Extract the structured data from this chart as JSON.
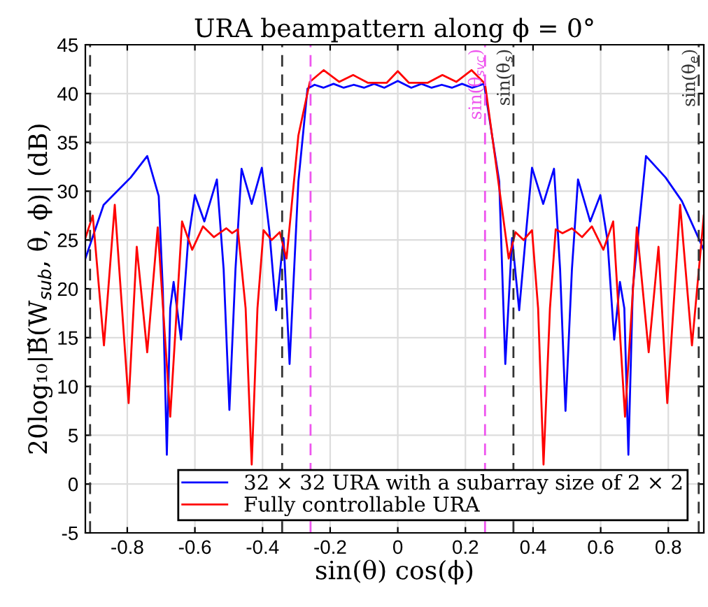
{
  "chart_data": {
    "type": "line",
    "title": "URA beampattern along ϕ = 0°",
    "xlabel": "sin(θ) cos(ϕ)",
    "ylabel": "20log₁₀|B̃(W$_{sub}$, θ, ϕ)| (dB)",
    "series": [
      {
        "name": "32 × 32 URA with a subarray size of 2 × 2",
        "color": "#0000ff",
        "x": [
          -0.924,
          -0.87,
          -0.79,
          -0.741,
          -0.707,
          -0.695,
          -0.683,
          -0.673,
          -0.663,
          -0.641,
          -0.62,
          -0.6,
          -0.572,
          -0.535,
          -0.515,
          -0.498,
          -0.48,
          -0.462,
          -0.432,
          -0.402,
          -0.38,
          -0.36,
          -0.338,
          -0.32,
          -0.294,
          -0.267,
          -0.246,
          -0.22,
          -0.19,
          -0.16,
          -0.13,
          -0.1,
          -0.07,
          -0.04,
          0,
          0.04,
          0.07,
          0.1,
          0.13,
          0.16,
          0.19,
          0.22,
          0.255,
          0.3,
          0.318,
          0.338,
          0.359,
          0.38,
          0.397,
          0.43,
          0.462,
          0.48,
          0.496,
          0.515,
          0.533,
          0.569,
          0.599,
          0.62,
          0.64,
          0.657,
          0.67,
          0.682,
          0.695,
          0.734,
          0.792,
          0.84,
          0.905
        ],
        "values": [
          23.1,
          28.6,
          31.4,
          33.6,
          29.5,
          20,
          3,
          18,
          20.7,
          14.8,
          25,
          29.6,
          26.9,
          31.2,
          22,
          7.6,
          22,
          32.3,
          28.7,
          32.4,
          26,
          17.8,
          25.2,
          12.3,
          31.0,
          40.5,
          40.9,
          40.6,
          41.0,
          40.6,
          40.9,
          40.6,
          41.0,
          40.6,
          41.3,
          40.6,
          41.0,
          40.6,
          40.9,
          40.6,
          41.0,
          40.6,
          41.0,
          31.0,
          12.3,
          25.2,
          17.8,
          26,
          32.4,
          28.7,
          32.3,
          22,
          7.5,
          22,
          31.2,
          26.9,
          29.6,
          25,
          14.8,
          20.7,
          18,
          3,
          20,
          33.6,
          31.4,
          29.0,
          24.0
        ]
      },
      {
        "name": "Fully controllable URA",
        "color": "#ff0000",
        "x": [
          -0.924,
          -0.902,
          -0.869,
          -0.837,
          -0.796,
          -0.772,
          -0.741,
          -0.71,
          -0.673,
          -0.638,
          -0.608,
          -0.576,
          -0.544,
          -0.507,
          -0.49,
          -0.473,
          -0.45,
          -0.432,
          -0.415,
          -0.397,
          -0.373,
          -0.349,
          -0.329,
          -0.294,
          -0.26,
          -0.219,
          -0.173,
          -0.132,
          -0.088,
          -0.033,
          0,
          0.033,
          0.088,
          0.132,
          0.173,
          0.218,
          0.258,
          0.288,
          0.328,
          0.348,
          0.372,
          0.397,
          0.415,
          0.431,
          0.45,
          0.467,
          0.487,
          0.515,
          0.545,
          0.574,
          0.608,
          0.637,
          0.672,
          0.707,
          0.742,
          0.771,
          0.797,
          0.835,
          0.87,
          0.905
        ],
        "values": [
          25.2,
          27.5,
          14.2,
          28.6,
          8.3,
          24.3,
          13.5,
          26.3,
          6.9,
          26.9,
          24.0,
          26.4,
          25.3,
          26.2,
          25.7,
          26.1,
          18,
          2,
          18,
          26.0,
          25.0,
          25.8,
          23.1,
          35.7,
          41.2,
          42.4,
          41.2,
          41.9,
          41.1,
          41.1,
          42.3,
          41.1,
          41.1,
          41.9,
          41.2,
          42.4,
          41.0,
          33.4,
          23.1,
          25.8,
          25.0,
          26.0,
          18,
          2,
          18,
          26.1,
          25.7,
          26.2,
          25.3,
          26.4,
          24.0,
          26.9,
          6.9,
          26.3,
          13.5,
          24.3,
          8.3,
          28.6,
          14.2,
          27.5
        ]
      }
    ],
    "xlim": [
      -0.924,
      0.905
    ],
    "ylim": [
      -5,
      45
    ],
    "xticks": [
      -0.8,
      -0.6,
      -0.4,
      -0.2,
      0,
      0.2,
      0.4,
      0.6,
      0.8
    ],
    "yticks": [
      -5,
      0,
      5,
      10,
      15,
      20,
      25,
      30,
      35,
      40,
      45
    ],
    "ref_lines": [
      {
        "axis": "x",
        "value": -0.91,
        "label": null,
        "color": "#333333",
        "line_style": "dashed"
      },
      {
        "axis": "x",
        "value": -0.342,
        "label": null,
        "color": "#333333",
        "line_style": "dashed"
      },
      {
        "axis": "x",
        "value": -0.258,
        "label": null,
        "color": "#ee55ee",
        "line_style": "dashed"
      },
      {
        "axis": "x",
        "value": 0.258,
        "label": "sin(θ$_{svc}$)",
        "color": "#ee55ee",
        "line_style": "dashed"
      },
      {
        "axis": "x",
        "value": 0.342,
        "label": "sin(θ$_{s}$)",
        "color": "#333333",
        "line_style": "dashed"
      },
      {
        "axis": "x",
        "value": 0.89,
        "label": "sin(θ$_{e}$)",
        "color": "#333333",
        "line_style": "dashed"
      }
    ],
    "grid": true,
    "legend": "bottom",
    "line_style": "solid",
    "marker": "none"
  }
}
